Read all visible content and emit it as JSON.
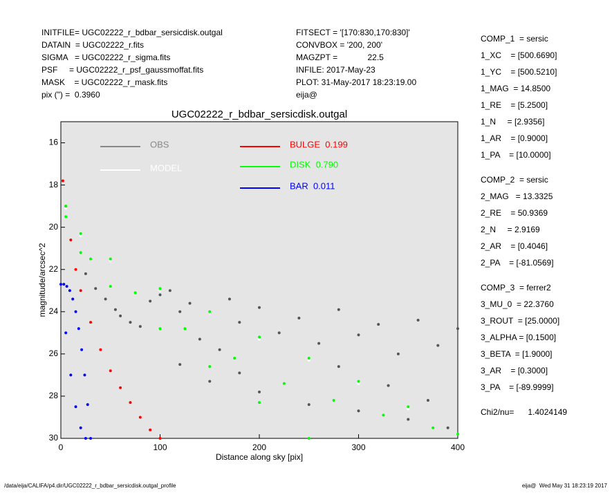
{
  "header": {
    "left": [
      "INITFILE= UGC02222_r_bdbar_sersicdisk.outgal",
      "DATAIN  = UGC02222_r.fits",
      "SIGMA   = UGC02222_r_sigma.fits",
      "PSF     = UGC02222_r_psf_gaussmoffat.fits",
      "MASK    = UGC02222_r_mask.fits",
      "pix (\") =  0.3960"
    ],
    "center": [
      "FITSECT = '[170:830,170:830]'",
      "CONVBOX = '200, 200'",
      "MAGZPT =             22.5",
      "INFILE: 2017-May-23",
      "PLOT: 31-May-2017 18:23:19.00",
      "eija@"
    ]
  },
  "params": [
    {
      "text": "COMP_1  = sersic",
      "gap": false
    },
    {
      "text": "1_XC    = [500.6690]"
    },
    {
      "text": "1_YC    = [500.5210]"
    },
    {
      "text": "1_MAG  = 14.8500"
    },
    {
      "text": "1_RE    = [5.2500]"
    },
    {
      "text": "1_N     = [2.9356]"
    },
    {
      "text": "1_AR    = [0.9000]"
    },
    {
      "text": "1_PA    = [10.0000]"
    },
    {
      "text": "COMP_2  = sersic",
      "gap": true
    },
    {
      "text": "2_MAG   = 13.3325"
    },
    {
      "text": "2_RE    = 50.9369"
    },
    {
      "text": "2_N     = 2.9169"
    },
    {
      "text": "2_AR    = [0.4046]"
    },
    {
      "text": "2_PA    = [-81.0569]"
    },
    {
      "text": "COMP_3  = ferrer2",
      "gap": true
    },
    {
      "text": "3_MU_0  = 22.3760"
    },
    {
      "text": "3_ROUT  = [25.0000]"
    },
    {
      "text": "3_ALPHA = [0.1500]"
    },
    {
      "text": "3_BETA  = [1.9000]"
    },
    {
      "text": "3_AR    = [0.3000]"
    },
    {
      "text": "3_PA    = [-89.9999]"
    },
    {
      "text": "Chi2/nu=      1.4024149",
      "gap": true
    }
  ],
  "footer": {
    "left": "/data/eija/CALIFA/p4.dir/UGC02222_r_bdbar_sersicdisk.outgal_profile",
    "right": "eija@  Wed May 31 18:23:19 2017"
  },
  "chart_data": {
    "type": "scatter",
    "title": "UGC02222_r_bdbar_sersicdisk.outgal",
    "x_label": "Distance along sky [pix]",
    "y_label": "magnitude/arcsec^2",
    "xlim": [
      0,
      400
    ],
    "xticks": [
      0,
      100,
      200,
      300,
      400
    ],
    "ylim": [
      30,
      15
    ],
    "yticks": [
      16,
      18,
      20,
      22,
      24,
      26,
      28,
      30
    ],
    "series": [
      {
        "name": "OBS",
        "color": "#555555",
        "x": [
          25,
          35,
          45,
          55,
          60,
          70,
          80,
          90,
          100,
          110,
          120,
          130,
          140,
          150,
          160,
          170,
          180,
          200,
          220,
          240,
          260,
          280,
          300,
          320,
          340,
          360,
          380,
          400,
          120,
          150,
          200,
          250,
          300,
          350,
          390,
          180,
          280,
          330,
          370
        ],
        "values": [
          22.2,
          22.9,
          23.4,
          23.9,
          24.2,
          24.5,
          24.7,
          23.5,
          23.2,
          23.0,
          24.0,
          23.6,
          25.3,
          24.1,
          25.8,
          23.4,
          24.5,
          23.8,
          25.0,
          24.3,
          25.5,
          23.9,
          25.1,
          24.6,
          26.0,
          24.4,
          25.6,
          24.8,
          26.5,
          27.3,
          27.8,
          28.4,
          28.7,
          29.1,
          29.5,
          26.9,
          26.6,
          27.5,
          28.2
        ]
      },
      {
        "name": "MODEL",
        "color": "#ffffff",
        "x": [
          5,
          20,
          50,
          100,
          150,
          200,
          250,
          300,
          350,
          400
        ],
        "values": [
          19.1,
          20.4,
          21.6,
          23.0,
          24.1,
          25.3,
          26.3,
          27.4,
          28.6,
          29.8
        ]
      },
      {
        "name": "BULGE  0.199",
        "color": "#ff0000",
        "x": [
          2,
          5,
          10,
          15,
          20,
          30,
          40,
          50,
          60,
          70,
          80,
          90,
          100
        ],
        "values": [
          17.8,
          19.0,
          20.6,
          22.0,
          23.0,
          24.5,
          25.8,
          26.8,
          27.6,
          28.3,
          29.0,
          29.6,
          30.0
        ]
      },
      {
        "name": "DISK  0.790",
        "color": "#00ff00",
        "x": [
          5,
          20,
          50,
          100,
          150,
          200,
          250,
          300,
          350,
          400,
          5,
          20,
          50,
          100,
          150,
          200,
          250,
          30,
          75,
          125,
          175,
          225,
          275,
          325,
          375
        ],
        "values": [
          19.0,
          20.3,
          21.5,
          22.9,
          24.0,
          25.2,
          26.2,
          27.3,
          28.5,
          29.8,
          19.5,
          21.2,
          22.8,
          24.8,
          26.6,
          28.3,
          30.0,
          21.5,
          23.1,
          24.8,
          26.2,
          27.4,
          28.2,
          28.9,
          29.5
        ]
      },
      {
        "name": "BAR  0.011",
        "color": "#0000ff",
        "x": [
          0,
          3,
          6,
          9,
          12,
          15,
          18,
          21,
          24,
          27,
          30,
          5,
          10,
          15,
          20,
          25
        ],
        "values": [
          22.7,
          22.7,
          22.8,
          23.0,
          23.4,
          24.0,
          24.8,
          25.8,
          27.0,
          28.4,
          30.0,
          25.0,
          27.0,
          28.5,
          29.5,
          30.0
        ]
      }
    ]
  }
}
